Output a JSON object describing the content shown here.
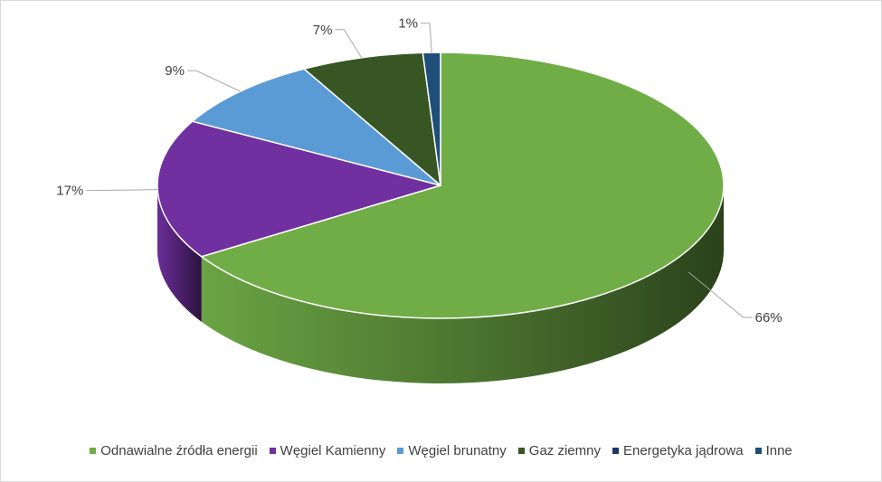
{
  "chart_data": {
    "type": "pie",
    "three_d": true,
    "title": "",
    "categories": [
      "Odnawialne źródła energii",
      "Węgiel Kamienny",
      "Węgiel brunatny",
      "Gaz ziemny",
      "Energetyka jądrowa",
      "Inne"
    ],
    "values": [
      66,
      17,
      9,
      7,
      0,
      1
    ],
    "data_labels": [
      "66%",
      "17%",
      "9%",
      "7%",
      "",
      "1%"
    ],
    "colors": [
      "#70ad47",
      "#7030a0",
      "#5b9bd5",
      "#375623",
      "#1f3864",
      "#1f4e79"
    ],
    "legend_position": "bottom"
  }
}
